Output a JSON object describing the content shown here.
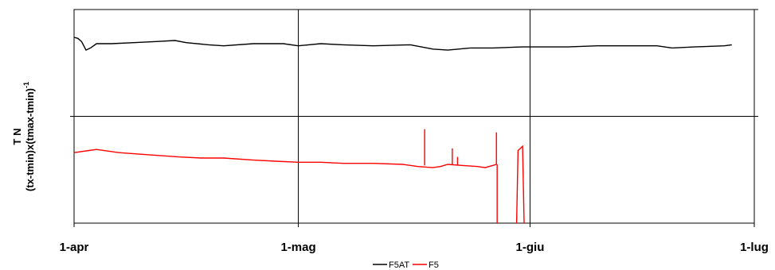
{
  "chart_data": {
    "type": "line",
    "title": "",
    "ylabel_line1": "T N",
    "ylabel_line2": "(tx-tmin)x(tmax-tmin)",
    "ylabel_superscript": "-1",
    "x_unit": "days since 1-apr",
    "xlim": [
      0,
      91
    ],
    "x_ticks": [
      {
        "label": "1-apr",
        "x": 0
      },
      {
        "label": "1-mag",
        "x": 30
      },
      {
        "label": "1-giu",
        "x": 61
      },
      {
        "label": "1-lug",
        "x": 91
      }
    ],
    "ylim": [
      0,
      2
    ],
    "y_ticks_labeled": false,
    "grid": true,
    "legend_position": "bottom-center",
    "series": [
      {
        "name": "F5AT",
        "color": "#000000",
        "x": [
          0,
          0.5,
          1,
          1.6,
          2.2,
          3,
          5,
          8,
          11,
          13.5,
          15,
          18,
          20,
          24,
          28,
          30,
          33,
          36,
          40,
          45,
          48,
          50,
          53,
          56,
          60,
          62,
          66,
          70,
          74,
          78,
          80,
          83,
          87,
          88
        ],
        "y": [
          1.74,
          1.73,
          1.7,
          1.62,
          1.64,
          1.68,
          1.68,
          1.69,
          1.7,
          1.71,
          1.69,
          1.67,
          1.66,
          1.68,
          1.68,
          1.66,
          1.68,
          1.67,
          1.66,
          1.67,
          1.63,
          1.62,
          1.64,
          1.64,
          1.65,
          1.65,
          1.65,
          1.66,
          1.66,
          1.66,
          1.64,
          1.65,
          1.66,
          1.67
        ]
      },
      {
        "name": "F5",
        "color": "#ff0000",
        "x": [
          0,
          2,
          3,
          6,
          10,
          14,
          17,
          20,
          24,
          27,
          30,
          33,
          36,
          40,
          44,
          46,
          48,
          49,
          50,
          52,
          54,
          55,
          55.5,
          56,
          56.5
        ],
        "y": [
          0.66,
          0.68,
          0.69,
          0.66,
          0.64,
          0.62,
          0.61,
          0.61,
          0.59,
          0.58,
          0.57,
          0.57,
          0.56,
          0.56,
          0.55,
          0.53,
          0.52,
          0.53,
          0.55,
          0.54,
          0.53,
          0.52,
          0.53,
          0.54,
          0.55
        ],
        "spikes": [
          {
            "x": 46.9,
            "base": 0.54,
            "peak": 0.88
          },
          {
            "x": 50.6,
            "base": 0.55,
            "peak": 0.7
          },
          {
            "x": 51.3,
            "base": 0.54,
            "peak": 0.62
          },
          {
            "x": 56.5,
            "base": 0.55,
            "peak": 0.85
          }
        ],
        "drops": [
          {
            "x": 56.6,
            "to": 0.0
          }
        ],
        "segment2": {
          "x": [
            59.2,
            59.4,
            59.7,
            60.0,
            60.2
          ],
          "y": [
            0.0,
            0.68,
            0.7,
            0.72,
            0.0
          ]
        }
      }
    ]
  }
}
